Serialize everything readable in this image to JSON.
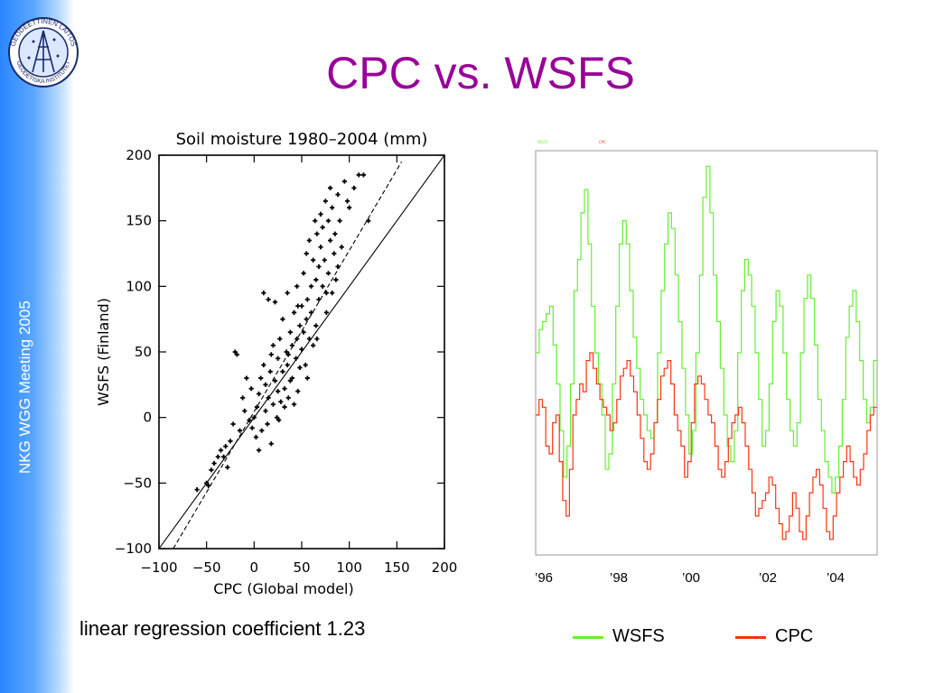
{
  "sidebar": {
    "label": "NKG WGG Meeting 2005",
    "logo_top_text": "GEODEETTINEN LAITOS",
    "logo_bottom_text": "GEODETISKA INSTITUTET"
  },
  "slide": {
    "title": "CPC vs. WSFS"
  },
  "colors": {
    "title": "#990099",
    "sidebar": "#3b8fff",
    "wsfs": "#66ee33",
    "cpc": "#ff3311"
  },
  "chart_data": [
    {
      "type": "scatter",
      "title": "Soil moisture 1980–2004 (mm)",
      "xlabel": "CPC (Global model)",
      "ylabel": "WSFS (Finland)",
      "xlim": [
        -100,
        200
      ],
      "ylim": [
        -100,
        200
      ],
      "xticks": [
        "−100",
        "−50",
        "0",
        "50",
        "100",
        "150",
        "200"
      ],
      "yticks": [
        "−100",
        "−50",
        "0",
        "50",
        "100",
        "150",
        "200"
      ],
      "lines": [
        {
          "name": "1:1",
          "style": "solid",
          "points": [
            [
              -100,
              -100
            ],
            [
              200,
              200
            ]
          ]
        },
        {
          "name": "regression",
          "style": "dashed",
          "points": [
            [
              -85,
              -100
            ],
            [
              155,
              195
            ]
          ]
        }
      ],
      "points": [
        [
          -50,
          -50
        ],
        [
          -48,
          -52
        ],
        [
          -45,
          -40
        ],
        [
          -42,
          -35
        ],
        [
          -38,
          -30
        ],
        [
          -35,
          -25
        ],
        [
          -30,
          -22
        ],
        [
          -28,
          -38
        ],
        [
          -25,
          -18
        ],
        [
          -22,
          -5
        ],
        [
          -20,
          50
        ],
        [
          -18,
          48
        ],
        [
          -15,
          -10
        ],
        [
          -12,
          15
        ],
        [
          -10,
          5
        ],
        [
          -8,
          30
        ],
        [
          -5,
          -2
        ],
        [
          -3,
          22
        ],
        [
          0,
          0
        ],
        [
          2,
          -15
        ],
        [
          3,
          8
        ],
        [
          5,
          -25
        ],
        [
          5,
          18
        ],
        [
          7,
          30
        ],
        [
          8,
          -10
        ],
        [
          10,
          40
        ],
        [
          10,
          95
        ],
        [
          12,
          25
        ],
        [
          12,
          5
        ],
        [
          14,
          -5
        ],
        [
          15,
          90
        ],
        [
          15,
          15
        ],
        [
          17,
          35
        ],
        [
          18,
          -20
        ],
        [
          20,
          10
        ],
        [
          20,
          55
        ],
        [
          22,
          28
        ],
        [
          22,
          88
        ],
        [
          24,
          0
        ],
        [
          25,
          45
        ],
        [
          25,
          20
        ],
        [
          27,
          60
        ],
        [
          28,
          12
        ],
        [
          30,
          35
        ],
        [
          30,
          75
        ],
        [
          32,
          22
        ],
        [
          32,
          8
        ],
        [
          34,
          50
        ],
        [
          35,
          40
        ],
        [
          35,
          95
        ],
        [
          36,
          15
        ],
        [
          38,
          65
        ],
        [
          38,
          28
        ],
        [
          40,
          55
        ],
        [
          40,
          30
        ],
        [
          42,
          80
        ],
        [
          42,
          10
        ],
        [
          44,
          45
        ],
        [
          45,
          60
        ],
        [
          45,
          100
        ],
        [
          46,
          20
        ],
        [
          48,
          70
        ],
        [
          48,
          38
        ],
        [
          50,
          85
        ],
        [
          50,
          52
        ],
        [
          52,
          65
        ],
        [
          52,
          110
        ],
        [
          54,
          40
        ],
        [
          55,
          75
        ],
        [
          55,
          125
        ],
        [
          56,
          90
        ],
        [
          58,
          60
        ],
        [
          58,
          135
        ],
        [
          60,
          100
        ],
        [
          60,
          80
        ],
        [
          62,
          120
        ],
        [
          62,
          55
        ],
        [
          64,
          150
        ],
        [
          65,
          105
        ],
        [
          65,
          70
        ],
        [
          66,
          140
        ],
        [
          68,
          90
        ],
        [
          68,
          115
        ],
        [
          70,
          155
        ],
        [
          70,
          130
        ],
        [
          72,
          100
        ],
        [
          72,
          145
        ],
        [
          74,
          120
        ],
        [
          75,
          165
        ],
        [
          76,
          80
        ],
        [
          78,
          150
        ],
        [
          78,
          110
        ],
        [
          80,
          175
        ],
        [
          80,
          135
        ],
        [
          82,
          95
        ],
        [
          82,
          160
        ],
        [
          84,
          125
        ],
        [
          85,
          140
        ],
        [
          86,
          105
        ],
        [
          88,
          170
        ],
        [
          88,
          115
        ],
        [
          90,
          150
        ],
        [
          92,
          130
        ],
        [
          95,
          180
        ],
        [
          98,
          165
        ],
        [
          100,
          160
        ],
        [
          105,
          175
        ],
        [
          110,
          185
        ],
        [
          115,
          185
        ],
        [
          120,
          150
        ],
        [
          -60,
          -55
        ],
        [
          -32,
          -30
        ],
        [
          -2,
          -8
        ],
        [
          18,
          48
        ],
        [
          26,
          -2
        ],
        [
          36,
          48
        ],
        [
          46,
          85
        ],
        [
          56,
          30
        ],
        [
          66,
          60
        ],
        [
          76,
          95
        ]
      ]
    },
    {
      "type": "line",
      "title": "",
      "xlabel": "",
      "ylabel": "",
      "x_tick_labels": [
        "’96",
        "’98",
        "’00",
        "’02",
        "’04"
      ],
      "series": [
        {
          "name": "WSFS",
          "values": [
            60,
            75,
            80,
            85,
            90,
            65,
            40,
            10,
            -20,
            0,
            40,
            100,
            120,
            150,
            165,
            130,
            90,
            60,
            40,
            20,
            -15,
            -5,
            40,
            90,
            130,
            145,
            130,
            100,
            70,
            50,
            30,
            20,
            10,
            5,
            15,
            60,
            100,
            130,
            150,
            140,
            110,
            80,
            50,
            20,
            -5,
            10,
            60,
            110,
            160,
            180,
            150,
            110,
            80,
            50,
            20,
            0,
            -10,
            10,
            60,
            100,
            120,
            110,
            90,
            60,
            30,
            0,
            10,
            40,
            80,
            100,
            90,
            60,
            30,
            10,
            0,
            15,
            60,
            95,
            110,
            95,
            65,
            30,
            10,
            -10,
            -20,
            -30,
            -20,
            0,
            30,
            70,
            90,
            100,
            80,
            55,
            30,
            15,
            25,
            55
          ]
        },
        {
          "name": "CPC",
          "values": [
            20,
            30,
            25,
            0,
            -5,
            15,
            20,
            -10,
            -35,
            -45,
            -15,
            20,
            30,
            40,
            35,
            55,
            60,
            50,
            40,
            30,
            25,
            20,
            10,
            15,
            30,
            45,
            50,
            55,
            45,
            35,
            20,
            5,
            -10,
            -15,
            -5,
            15,
            30,
            45,
            50,
            55,
            40,
            20,
            10,
            0,
            -20,
            -10,
            15,
            40,
            45,
            40,
            30,
            20,
            15,
            0,
            -15,
            -20,
            -10,
            5,
            15,
            20,
            25,
            15,
            0,
            -15,
            -30,
            -45,
            -40,
            -35,
            -30,
            -20,
            -25,
            -40,
            -50,
            -60,
            -55,
            -45,
            -30,
            -40,
            -55,
            -60,
            -45,
            -30,
            -20,
            -15,
            -25,
            -40,
            -55,
            -60,
            -45,
            -30,
            -20,
            -10,
            0,
            -10,
            -20,
            -25,
            -15,
            -5,
            10,
            20,
            25
          ]
        }
      ],
      "ylim": [
        -70,
        190
      ]
    }
  ],
  "scatter_caption": "linear regression coefficient 1.23",
  "legend": {
    "wsfs_label": "WSFS",
    "cpc_label": "CPC"
  },
  "ts_axis": {
    "tick_96": "’96",
    "tick_98": "’98",
    "tick_00": "’00",
    "tick_02": "’02",
    "tick_04": "’04"
  }
}
